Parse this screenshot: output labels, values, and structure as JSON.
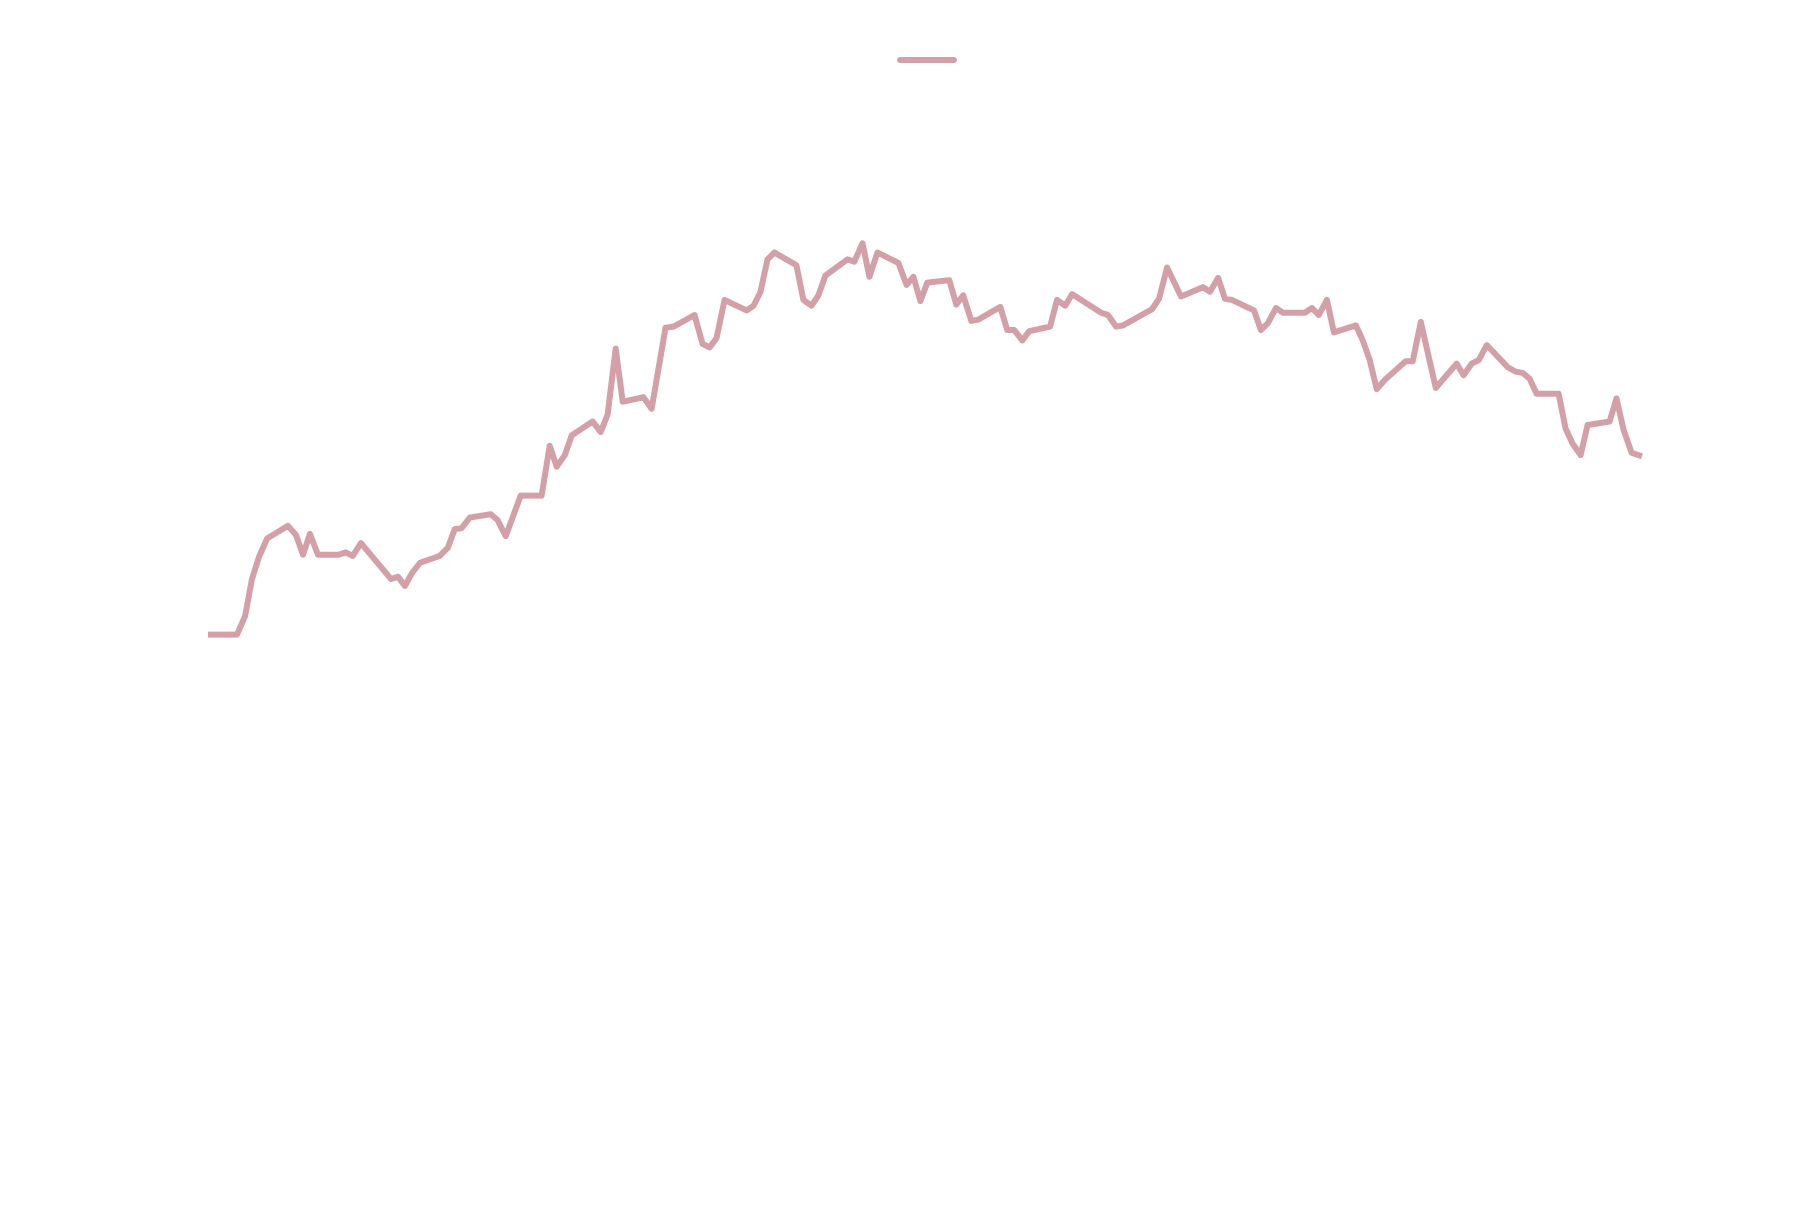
{
  "chart_data": {
    "type": "line",
    "x": [
      0,
      25,
      32,
      38,
      44,
      51,
      69,
      76,
      82,
      88,
      95,
      113,
      119,
      125,
      132,
      158,
      164,
      170,
      176,
      183,
      200,
      207,
      213,
      219,
      226,
      244,
      250,
      257,
      270,
      288,
      295,
      301,
      308,
      314,
      332,
      339,
      345,
      352,
      358,
      376,
      383,
      389,
      395,
      402,
      420,
      427,
      433,
      439,
      446,
      465,
      471,
      477,
      483,
      489,
      508,
      514,
      521,
      527,
      533,
      552,
      558,
      565,
      571,
      578,
      596,
      603,
      609,
      615,
      621,
      640,
      646,
      652,
      659,
      665,
      684,
      690,
      696,
      703,
      709,
      727,
      733,
      740,
      746,
      771,
      777,
      784,
      790,
      815,
      821,
      828,
      840,
      859,
      865,
      872,
      878,
      884,
      903,
      909,
      915,
      922,
      928,
      947,
      953,
      959,
      966,
      972,
      991,
      997,
      1003,
      1009,
      1016,
      1034,
      1040,
      1047,
      1060,
      1078,
      1084,
      1091,
      1097,
      1104,
      1122,
      1129,
      1135,
      1141,
      1147,
      1166,
      1172,
      1178,
      1185,
      1191,
      1210,
      1216,
      1222,
      1229,
      1238
    ],
    "series": [
      {
        "color": "#d4a0a8",
        "values": [
          496,
          496,
          512,
          544,
          563,
          579,
          590,
          582,
          565,
          583,
          565,
          565,
          567,
          564,
          575,
          544,
          546,
          538,
          549,
          558,
          564,
          571,
          587,
          588,
          597,
          600,
          595,
          581,
          616,
          616,
          659,
          641,
          651,
          668,
          680,
          671,
          686,
          743,
          697,
          701,
          691,
          726,
          761,
          762,
          772,
          747,
          744,
          752,
          785,
          776,
          780,
          792,
          820,
          826,
          815,
          785,
          780,
          789,
          806,
          820,
          818,
          834,
          805,
          826,
          817,
          798,
          805,
          784,
          800,
          802,
          781,
          789,
          767,
          768,
          779,
          759,
          759,
          750,
          758,
          762,
          785,
          780,
          790,
          774,
          772,
          762,
          763,
          777,
          786,
          813,
          788,
          796,
          792,
          804,
          786,
          785,
          776,
          759,
          765,
          778,
          774,
          774,
          778,
          772,
          785,
          757,
          763,
          750,
          733,
          708,
          716,
          732,
          732,
          766,
          709,
          730,
          720,
          730,
          733,
          746,
          727,
          723,
          722,
          717,
          704,
          704,
          674,
          661,
          651,
          677,
          680,
          700,
          673,
          653,
          650
        ]
      }
    ],
    "xlim": [
      0,
      1238
    ],
    "ylim": [
      0,
      1044
    ],
    "legend": "top"
  }
}
